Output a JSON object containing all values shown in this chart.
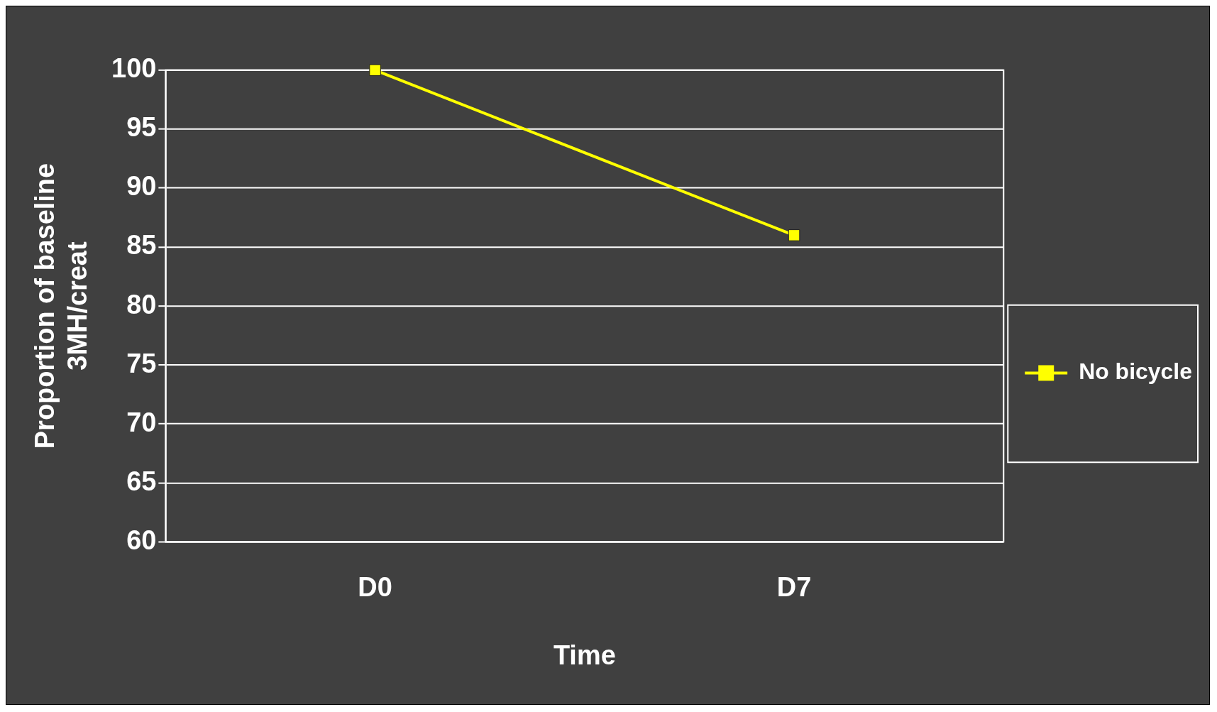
{
  "chart_data": {
    "type": "line",
    "xlabel": "Time",
    "ylabel": "Proportion of baseline\n3MH/creat",
    "categories": [
      "D0",
      "D7"
    ],
    "series": [
      {
        "name": "No bicycle",
        "color": "#ffff00",
        "values": [
          100,
          86
        ]
      }
    ],
    "ylim": [
      60,
      100
    ],
    "yticks": [
      60,
      65,
      70,
      75,
      80,
      85,
      90,
      95,
      100
    ],
    "grid": "y",
    "legend": "right",
    "marker": "square",
    "line_style": "solid"
  }
}
